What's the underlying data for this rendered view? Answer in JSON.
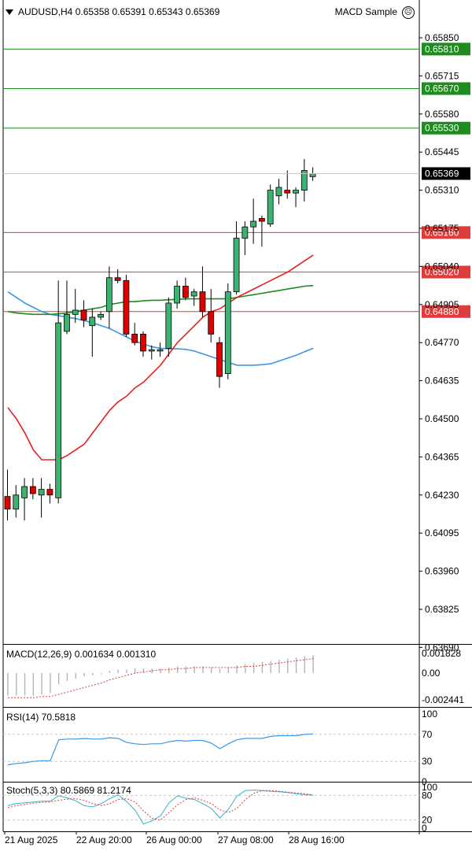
{
  "header": {
    "symbol": "AUDUSD,H4",
    "open": "0.65358",
    "high": "0.65391",
    "low": "0.65343",
    "close": "0.65369",
    "ea_name": "MACD Sample"
  },
  "price_axis": {
    "ticks": [
      "0.65850",
      "0.65715",
      "0.65580",
      "0.65445",
      "0.65310",
      "0.65175",
      "0.65040",
      "0.64905",
      "0.64770",
      "0.64635",
      "0.64500",
      "0.64365",
      "0.64230",
      "0.64095",
      "0.63960",
      "0.63825",
      "0.63690"
    ],
    "current_price": "0.65369"
  },
  "levels": [
    {
      "price": "0.65810",
      "color": "#1e8c1e"
    },
    {
      "price": "0.65670",
      "color": "#1e8c1e"
    },
    {
      "price": "0.65530",
      "color": "#1e8c1e"
    },
    {
      "price": "0.65160",
      "color": "#e03c3c"
    },
    {
      "price": "0.65020",
      "color": "#e03c3c"
    },
    {
      "price": "0.64880",
      "color": "#e03c3c"
    }
  ],
  "time_axis": [
    "21 Aug 2025",
    "22 Aug 20:00",
    "26 Aug 00:00",
    "27 Aug 08:00",
    "28 Aug 16:00"
  ],
  "colors": {
    "bull": "#3cb371",
    "bear": "#e00000",
    "ma_fast": "#e62020",
    "ma_slow": "#1e8c1e",
    "ma_blue": "#3c96e6",
    "rsi": "#3c96e6",
    "stoch_main": "#32b4c8",
    "stoch_signal": "#e03c3c",
    "macd_hist": "#b4b4b4",
    "macd_signal": "#e03c3c",
    "level_green": "#1e8c1e",
    "level_red": "#e03c3c"
  },
  "macd": {
    "label": "MACD(12,26,9) 0.001634 0.001310",
    "ticks": [
      "0.001828",
      "0.00",
      "-0.002441"
    ]
  },
  "rsi": {
    "label": "RSI(14) 70.5818",
    "ticks": [
      "100",
      "70",
      "30",
      "0"
    ]
  },
  "stoch": {
    "label": "Stoch(5,3,3) 80.5869 81.2174",
    "ticks": [
      "100",
      "80",
      "20",
      "0"
    ]
  },
  "chart_data": {
    "type": "candlestick",
    "title": "AUDUSD,H4",
    "xlabel": "",
    "ylabel": "",
    "ylim": [
      0.6358,
      0.6592
    ],
    "candles": [
      {
        "o": 0.64225,
        "h": 0.6432,
        "l": 0.6414,
        "c": 0.6418
      },
      {
        "o": 0.6418,
        "h": 0.64265,
        "l": 0.6415,
        "c": 0.6423
      },
      {
        "o": 0.6422,
        "h": 0.6429,
        "l": 0.6414,
        "c": 0.6426
      },
      {
        "o": 0.6426,
        "h": 0.6429,
        "l": 0.64215,
        "c": 0.64235
      },
      {
        "o": 0.6423,
        "h": 0.6429,
        "l": 0.6415,
        "c": 0.6425
      },
      {
        "o": 0.6425,
        "h": 0.6427,
        "l": 0.642,
        "c": 0.6423
      },
      {
        "o": 0.6422,
        "h": 0.6499,
        "l": 0.642,
        "c": 0.6484
      },
      {
        "o": 0.6481,
        "h": 0.6499,
        "l": 0.648,
        "c": 0.6487
      },
      {
        "o": 0.6487,
        "h": 0.6496,
        "l": 0.6484,
        "c": 0.64885
      },
      {
        "o": 0.64885,
        "h": 0.6492,
        "l": 0.64825,
        "c": 0.6485
      },
      {
        "o": 0.6483,
        "h": 0.6489,
        "l": 0.6472,
        "c": 0.6486
      },
      {
        "o": 0.6486,
        "h": 0.6488,
        "l": 0.6485,
        "c": 0.6487
      },
      {
        "o": 0.6488,
        "h": 0.6504,
        "l": 0.6482,
        "c": 0.65
      },
      {
        "o": 0.65,
        "h": 0.6503,
        "l": 0.6498,
        "c": 0.6499
      },
      {
        "o": 0.6499,
        "h": 0.6501,
        "l": 0.6479,
        "c": 0.648
      },
      {
        "o": 0.648,
        "h": 0.6484,
        "l": 0.6476,
        "c": 0.6477
      },
      {
        "o": 0.648,
        "h": 0.6481,
        "l": 0.6472,
        "c": 0.6474
      },
      {
        "o": 0.6474,
        "h": 0.6476,
        "l": 0.6471,
        "c": 0.64745
      },
      {
        "o": 0.6474,
        "h": 0.6477,
        "l": 0.6472,
        "c": 0.64745
      },
      {
        "o": 0.6475,
        "h": 0.6493,
        "l": 0.6472,
        "c": 0.6491
      },
      {
        "o": 0.6491,
        "h": 0.6499,
        "l": 0.6489,
        "c": 0.6497
      },
      {
        "o": 0.6497,
        "h": 0.65,
        "l": 0.6492,
        "c": 0.6493
      },
      {
        "o": 0.64935,
        "h": 0.6496,
        "l": 0.649,
        "c": 0.6495
      },
      {
        "o": 0.6495,
        "h": 0.6504,
        "l": 0.6486,
        "c": 0.6488
      },
      {
        "o": 0.6488,
        "h": 0.6496,
        "l": 0.6477,
        "c": 0.648
      },
      {
        "o": 0.6477,
        "h": 0.6479,
        "l": 0.6461,
        "c": 0.6465
      },
      {
        "o": 0.6466,
        "h": 0.6498,
        "l": 0.6464,
        "c": 0.6495
      },
      {
        "o": 0.6495,
        "h": 0.652,
        "l": 0.6494,
        "c": 0.6514
      },
      {
        "o": 0.6514,
        "h": 0.652,
        "l": 0.6508,
        "c": 0.6518
      },
      {
        "o": 0.6518,
        "h": 0.6528,
        "l": 0.6512,
        "c": 0.652
      },
      {
        "o": 0.6521,
        "h": 0.6522,
        "l": 0.6511,
        "c": 0.652
      },
      {
        "o": 0.6519,
        "h": 0.6533,
        "l": 0.6518,
        "c": 0.6531
      },
      {
        "o": 0.6529,
        "h": 0.6535,
        "l": 0.6526,
        "c": 0.6532
      },
      {
        "o": 0.6531,
        "h": 0.6538,
        "l": 0.6528,
        "c": 0.653
      },
      {
        "o": 0.653,
        "h": 0.6532,
        "l": 0.6525,
        "c": 0.6531
      },
      {
        "o": 0.6531,
        "h": 0.6542,
        "l": 0.6527,
        "c": 0.6538
      },
      {
        "o": 0.65358,
        "h": 0.65391,
        "l": 0.65343,
        "c": 0.65369
      }
    ],
    "ma_red": [
      0.6454,
      0.645,
      0.6445,
      0.6439,
      0.64355,
      0.64355,
      0.64355,
      0.6437,
      0.6439,
      0.6441,
      0.6445,
      0.6449,
      0.6453,
      0.6456,
      0.6458,
      0.6461,
      0.6463,
      0.6466,
      0.6469,
      0.6473,
      0.6477,
      0.648,
      0.6483,
      0.6486,
      0.6488,
      0.6489,
      0.6491,
      0.6493,
      0.64945,
      0.6496,
      0.64975,
      0.6499,
      0.65005,
      0.6502,
      0.6504,
      0.6506,
      0.6508
    ],
    "ma_green": [
      0.6488,
      0.64875,
      0.64872,
      0.6487,
      0.6487,
      0.6487,
      0.64872,
      0.64875,
      0.6488,
      0.64885,
      0.6489,
      0.64895,
      0.64905,
      0.6491,
      0.64915,
      0.64915,
      0.64918,
      0.6492,
      0.6492,
      0.64922,
      0.64923,
      0.64925,
      0.64925,
      0.64925,
      0.64925,
      0.64925,
      0.64925,
      0.6493,
      0.64935,
      0.6494,
      0.64945,
      0.6495,
      0.64955,
      0.6496,
      0.64965,
      0.6497,
      0.64972
    ],
    "ma_blue": [
      0.6495,
      0.6493,
      0.6491,
      0.64895,
      0.6488,
      0.6487,
      0.64865,
      0.6486,
      0.64855,
      0.64848,
      0.6484,
      0.6483,
      0.6482,
      0.64805,
      0.6479,
      0.64775,
      0.64765,
      0.64755,
      0.6475,
      0.64748,
      0.64748,
      0.64746,
      0.6474,
      0.6473,
      0.6472,
      0.6471,
      0.647,
      0.6469,
      0.6469,
      0.6469,
      0.64692,
      0.64695,
      0.64705,
      0.64715,
      0.64725,
      0.64738,
      0.6475
    ],
    "macd_hist": [
      -0.002,
      -0.002,
      -0.002,
      -0.002,
      -0.0019,
      -0.0018,
      -0.001,
      -0.0007,
      -0.0005,
      -0.0003,
      -0.0002,
      -0.0001,
      0.0002,
      0.0003,
      0.0003,
      0.0004,
      0.0004,
      0.0004,
      0.0004,
      0.0005,
      0.0006,
      0.0006,
      0.0006,
      0.0006,
      0.0005,
      0.0004,
      0.0005,
      0.0007,
      0.0008,
      0.0009,
      0.001,
      0.0011,
      0.0012,
      0.0013,
      0.0014,
      0.0015,
      0.0016
    ],
    "macd_signal": [
      -0.0022,
      -0.0022,
      -0.0022,
      -0.0022,
      -0.0021,
      -0.0021,
      -0.0019,
      -0.0017,
      -0.0015,
      -0.0013,
      -0.0011,
      -0.0009,
      -0.0006,
      -0.0004,
      -0.0002,
      0.0,
      0.0001,
      0.0002,
      0.0003,
      0.0003,
      0.0004,
      0.0004,
      0.0005,
      0.0005,
      0.0005,
      0.0005,
      0.0005,
      0.0005,
      0.0006,
      0.0006,
      0.0007,
      0.0008,
      0.0009,
      0.001,
      0.0011,
      0.0012,
      0.0013
    ],
    "rsi": [
      25,
      27,
      28,
      30,
      31,
      31,
      62,
      63,
      63,
      64,
      63,
      63,
      65,
      64,
      58,
      56,
      55,
      56,
      56,
      59,
      61,
      60,
      61,
      61,
      57,
      49,
      56,
      62,
      64,
      64,
      64,
      67,
      68,
      68,
      68,
      70,
      70.6
    ],
    "stoch_main": [
      55,
      60,
      62,
      64,
      66,
      66,
      79,
      74,
      67,
      55,
      52,
      60,
      72,
      82,
      65,
      44,
      10,
      18,
      30,
      62,
      79,
      73,
      70,
      60,
      48,
      25,
      46,
      78,
      92,
      93,
      92,
      90,
      89,
      87,
      84,
      82,
      80.6
    ],
    "stoch_signal": [
      50,
      55,
      58,
      61,
      63,
      64,
      68,
      71,
      72,
      68,
      60,
      55,
      60,
      70,
      72,
      64,
      42,
      24,
      20,
      38,
      57,
      70,
      74,
      68,
      60,
      45,
      38,
      48,
      70,
      85,
      92,
      92,
      90,
      88,
      86,
      84,
      81.2
    ]
  }
}
